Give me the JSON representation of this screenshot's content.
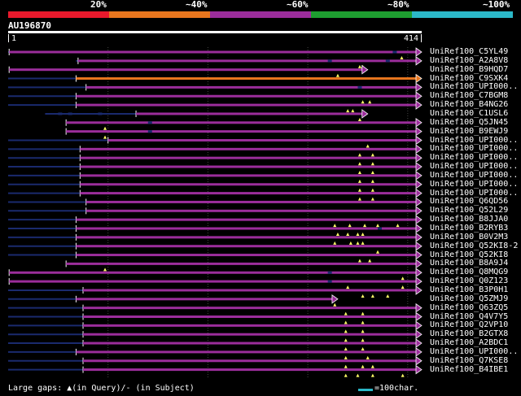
{
  "scale_bar": {
    "segments": [
      {
        "label": "20%",
        "color": "#e8192c"
      },
      {
        "label": "~40%",
        "color": "#e8761e"
      },
      {
        "label": "~60%",
        "color": "#9b2d9b"
      },
      {
        "label": "~80%",
        "color": "#1e9e30"
      },
      {
        "label": "~100%",
        "color": "#2bb8c8"
      }
    ]
  },
  "query": {
    "name": "AU196870",
    "start_label": "1",
    "end_label": "414",
    "length": 414
  },
  "colors": {
    "purple": "#9b2d9b",
    "orange": "#e8761e",
    "thin_line": "#1a2a6e",
    "gap_line": "#a0a0a0",
    "marker": "#ffff66",
    "grid": "#444444"
  },
  "hits": [
    {
      "label": "UniRef100_C5YL49",
      "start": 1,
      "end": 414,
      "color": "purple",
      "thin_from": 0,
      "markers": [
        394
      ],
      "gaps": [
        385
      ]
    },
    {
      "label": "UniRef100_A2A8V8",
      "start": 70,
      "end": 414,
      "color": "purple",
      "thin_from": 68,
      "markers": [
        352,
        355
      ],
      "gaps": [
        320,
        378
      ]
    },
    {
      "label": "UniRef100_B9HQD7",
      "start": 1,
      "end": 360,
      "color": "purple",
      "thin_from": 1,
      "markers": [
        330
      ],
      "gaps": []
    },
    {
      "label": "UniRef100_C9SXK4",
      "start": 68,
      "end": 414,
      "color": "orange",
      "thin_from": 0,
      "markers": [],
      "gaps": []
    },
    {
      "label": "UniRef100_UPI000..",
      "start": 78,
      "end": 414,
      "color": "purple",
      "thin_from": 0,
      "markers": [],
      "gaps": [
        350
      ]
    },
    {
      "label": "UniRef100_C7BGM8",
      "start": 68,
      "end": 414,
      "color": "purple",
      "thin_from": 0,
      "markers": [
        355,
        362
      ],
      "gaps": []
    },
    {
      "label": "UniRef100_B4NG26",
      "start": 68,
      "end": 414,
      "color": "purple",
      "thin_from": 0,
      "markers": [
        340,
        345
      ],
      "gaps": []
    },
    {
      "label": "UniRef100_C1USL6",
      "start": 128,
      "end": 360,
      "color": "purple",
      "thin_from": 37,
      "markers": [
        352
      ],
      "gaps": [
        50,
        60,
        90
      ]
    },
    {
      "label": "UniRef100_Q5JN45",
      "start": 58,
      "end": 414,
      "color": "purple",
      "thin_from": 58,
      "markers": [
        97
      ],
      "gaps": [
        140
      ]
    },
    {
      "label": "UniRef100_B9EWJ9",
      "start": 58,
      "end": 414,
      "color": "purple",
      "thin_from": 58,
      "markers": [
        97
      ],
      "gaps": [
        140
      ]
    },
    {
      "label": "UniRef100_UPI000..",
      "start": 100,
      "end": 414,
      "color": "purple",
      "thin_from": 0,
      "markers": [
        360
      ],
      "gaps": []
    },
    {
      "label": "UniRef100_UPI000..",
      "start": 72,
      "end": 414,
      "color": "purple",
      "thin_from": 0,
      "markers": [
        352,
        365
      ],
      "gaps": []
    },
    {
      "label": "UniRef100_UPI000..",
      "start": 72,
      "end": 414,
      "color": "purple",
      "thin_from": 0,
      "markers": [
        352,
        365
      ],
      "gaps": []
    },
    {
      "label": "UniRef100_UPI000..",
      "start": 72,
      "end": 414,
      "color": "purple",
      "thin_from": 0,
      "markers": [
        352,
        365
      ],
      "gaps": []
    },
    {
      "label": "UniRef100_UPI000..",
      "start": 72,
      "end": 414,
      "color": "purple",
      "thin_from": 0,
      "markers": [
        352,
        365
      ],
      "gaps": []
    },
    {
      "label": "UniRef100_UPI000..",
      "start": 72,
      "end": 414,
      "color": "purple",
      "thin_from": 0,
      "markers": [
        352,
        365
      ],
      "gaps": []
    },
    {
      "label": "UniRef100_UPI000..",
      "start": 72,
      "end": 414,
      "color": "purple",
      "thin_from": 0,
      "markers": [
        352,
        365
      ],
      "gaps": []
    },
    {
      "label": "UniRef100_Q6QD56",
      "start": 78,
      "end": 414,
      "color": "purple",
      "thin_from": 0,
      "markers": [],
      "gaps": []
    },
    {
      "label": "UniRef100_Q52L29",
      "start": 78,
      "end": 414,
      "color": "purple",
      "thin_from": 0,
      "markers": [],
      "gaps": []
    },
    {
      "label": "UniRef100_B8JJA0",
      "start": 68,
      "end": 414,
      "color": "purple",
      "thin_from": 0,
      "markers": [
        327,
        342,
        357,
        370,
        390
      ],
      "gaps": []
    },
    {
      "label": "UniRef100_B2RYB3",
      "start": 68,
      "end": 414,
      "color": "purple",
      "thin_from": 0,
      "markers": [
        330,
        340,
        350,
        355
      ],
      "gaps": [
        370
      ]
    },
    {
      "label": "UniRef100_B0V2M3",
      "start": 68,
      "end": 414,
      "color": "purple",
      "thin_from": 0,
      "markers": [
        327,
        343,
        350,
        355
      ],
      "gaps": []
    },
    {
      "label": "UniRef100_Q52KI8-2",
      "start": 68,
      "end": 414,
      "color": "purple",
      "thin_from": 0,
      "markers": [
        370
      ],
      "gaps": []
    },
    {
      "label": "UniRef100_Q52KI8",
      "start": 68,
      "end": 414,
      "color": "purple",
      "thin_from": 0,
      "markers": [
        352,
        362
      ],
      "gaps": []
    },
    {
      "label": "UniRef100_B8A9J4",
      "start": 58,
      "end": 414,
      "color": "purple",
      "thin_from": 58,
      "markers": [
        97
      ],
      "gaps": []
    },
    {
      "label": "UniRef100_Q8MQG9",
      "start": 1,
      "end": 414,
      "color": "purple",
      "thin_from": 1,
      "markers": [
        395
      ],
      "gaps": [
        320
      ]
    },
    {
      "label": "UniRef100_Q0Z123",
      "start": 1,
      "end": 414,
      "color": "purple",
      "thin_from": 1,
      "markers": [
        340,
        395
      ],
      "gaps": [
        320
      ]
    },
    {
      "label": "UniRef100_B3P0H1",
      "start": 75,
      "end": 414,
      "color": "purple",
      "thin_from": 0,
      "markers": [
        355,
        365,
        380
      ],
      "gaps": []
    },
    {
      "label": "UniRef100_Q5ZMJ9",
      "start": 68,
      "end": 330,
      "color": "purple",
      "thin_from": 0,
      "markers": [
        327
      ],
      "gaps": []
    },
    {
      "label": "UniRef100_Q63ZQ5",
      "start": 75,
      "end": 414,
      "color": "purple",
      "thin_from": 0,
      "markers": [
        338,
        355
      ],
      "gaps": []
    },
    {
      "label": "UniRef100_Q4V7Y5",
      "start": 75,
      "end": 414,
      "color": "purple",
      "thin_from": 0,
      "markers": [
        338,
        355
      ],
      "gaps": []
    },
    {
      "label": "UniRef100_Q2VP10",
      "start": 75,
      "end": 414,
      "color": "purple",
      "thin_from": 0,
      "markers": [
        338,
        355
      ],
      "gaps": []
    },
    {
      "label": "UniRef100_B2GTX8",
      "start": 75,
      "end": 414,
      "color": "purple",
      "thin_from": 0,
      "markers": [
        338,
        355
      ],
      "gaps": []
    },
    {
      "label": "UniRef100_A2BDC1",
      "start": 75,
      "end": 414,
      "color": "purple",
      "thin_from": 0,
      "markers": [
        338,
        355
      ],
      "gaps": []
    },
    {
      "label": "UniRef100_UPI000..",
      "start": 68,
      "end": 414,
      "color": "purple",
      "thin_from": 0,
      "markers": [
        338,
        360
      ],
      "gaps": []
    },
    {
      "label": "UniRef100_Q7KSE8",
      "start": 75,
      "end": 414,
      "color": "purple",
      "thin_from": 0,
      "markers": [
        338,
        355,
        365
      ],
      "gaps": []
    },
    {
      "label": "UniRef100_B4IBE1",
      "start": 75,
      "end": 414,
      "color": "purple",
      "thin_from": 0,
      "markers": [
        338,
        350,
        365,
        395
      ],
      "gaps": []
    }
  ],
  "legend": {
    "text": "Large gaps: ▲(in Query)/- (in Subject)",
    "scale_label": "=100char."
  }
}
